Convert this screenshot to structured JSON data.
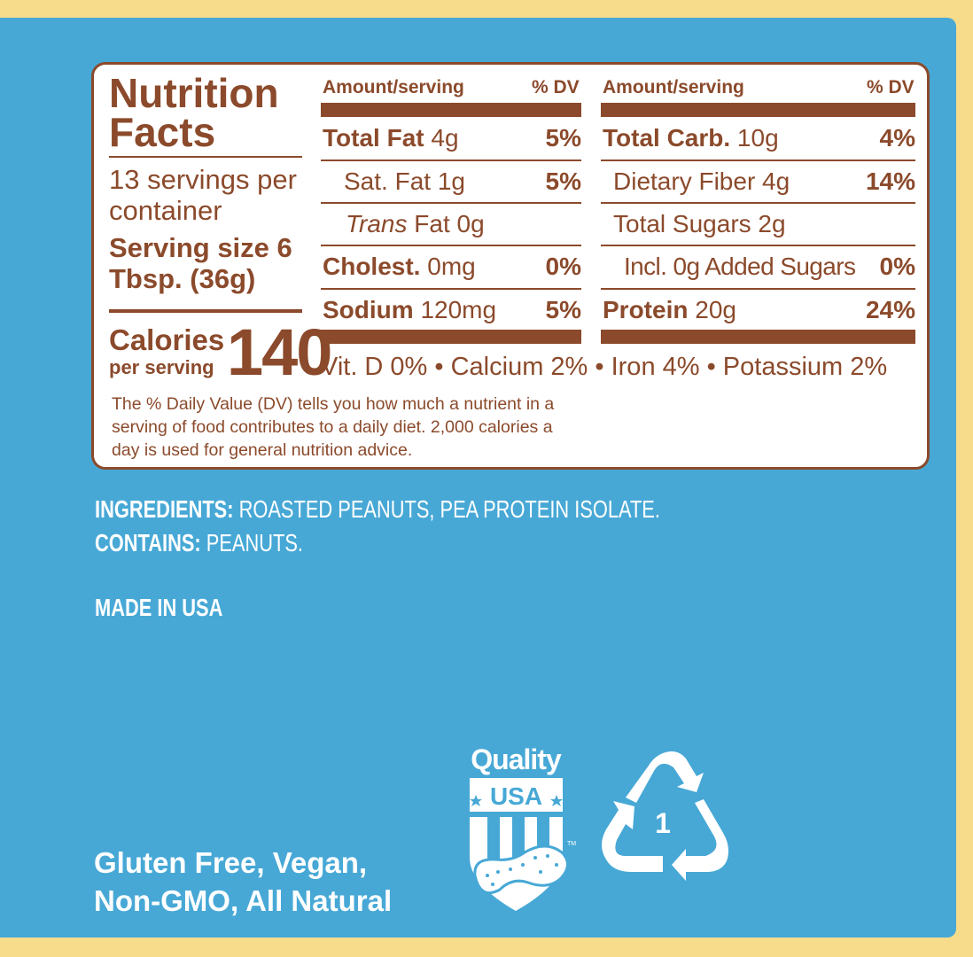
{
  "nutrition": {
    "title": "Nutrition\nFacts",
    "servings": "13 servings per container",
    "serving_size": "Serving size 6 Tbsp. (36g)",
    "calories_label": "Calories",
    "calories_sub": "per serving",
    "calories_value": "140",
    "col_amount": "Amount/serving",
    "col_dv": "% DV",
    "left_rows": [
      {
        "bold": "Total Fat",
        "rest": " 4g",
        "dv": "5%"
      },
      {
        "bold": "",
        "rest": "Sat. Fat 1g",
        "dv": "5%"
      },
      {
        "italic": "Trans",
        "rest": " Fat 0g",
        "dv": ""
      },
      {
        "bold": "Cholest.",
        "rest": " 0mg",
        "dv": "0%"
      },
      {
        "bold": "Sodium",
        "rest": " 120mg",
        "dv": "5%"
      }
    ],
    "right_rows": [
      {
        "bold": "Total Carb.",
        "rest": " 10g",
        "dv": "4%"
      },
      {
        "bold": "",
        "rest": "Dietary Fiber 4g",
        "dv": "14%"
      },
      {
        "bold": "",
        "rest": "Total Sugars 2g",
        "dv": ""
      },
      {
        "bold": "",
        "rest": "Incl. 0g Added Sugars",
        "dv": "0%"
      },
      {
        "bold": "Protein",
        "rest": " 20g",
        "dv": "24%"
      }
    ],
    "vitamins": "Vit. D 0% • Calcium 2% • Iron 4% • Potassium 2%",
    "dv_note": "The % Daily Value (DV) tells you how much a nutrient in a serving of food contributes to a daily diet. 2,000 calories a day is used for general nutrition advice."
  },
  "ingredients": {
    "label": "INGREDIENTS:",
    "text": " ROASTED PEANUTS, PEA PROTEIN ISOLATE.",
    "contains_label": "CONTAINS:",
    "contains_text": " PEANUTS."
  },
  "made_in": "MADE IN USA",
  "claims": "Gluten Free, Vegan,\nNon-GMO, All Natural",
  "badge": {
    "top": "Quality",
    "mid": "USA",
    "tm": "TM"
  },
  "recycle": {
    "code": "1"
  },
  "colors": {
    "brown": "#8b4a2b",
    "blue": "#47a8d6",
    "yellow": "#f7dc8c"
  }
}
